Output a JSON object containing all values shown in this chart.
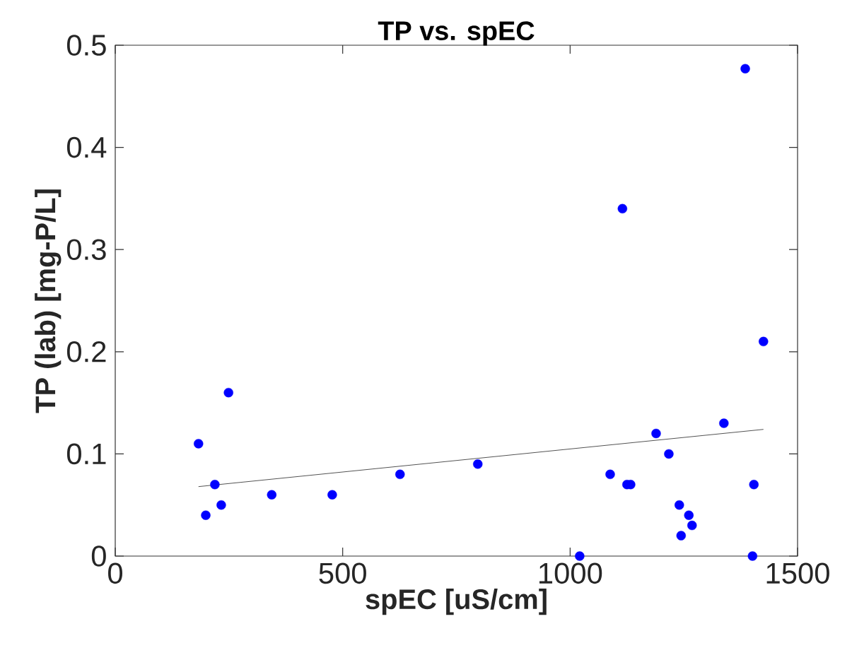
{
  "chart_data": {
    "type": "scatter",
    "title": "TP vs. spEC",
    "xlabel": "spEC [uS/cm]",
    "ylabel": "TP (lab) [mg-P/L]",
    "xlim": [
      0,
      1500
    ],
    "xticks": [
      0,
      500,
      1000,
      1500
    ],
    "ylim": [
      0,
      0.5
    ],
    "yticks": [
      0,
      0.1,
      0.2,
      0.3,
      0.4,
      0.5
    ],
    "grid": false,
    "marker": "circle",
    "series": [
      {
        "color": "#0000ff",
        "x": [
          183,
          199,
          219,
          233,
          249,
          344,
          477,
          626,
          797,
          1021,
          1088,
          1115,
          1125,
          1133,
          1189,
          1217,
          1240,
          1244,
          1261,
          1268,
          1338,
          1385,
          1401,
          1404,
          1425
        ],
        "values": [
          0.11,
          0.04,
          0.07,
          0.05,
          0.16,
          0.06,
          0.06,
          0.08,
          0.09,
          0,
          0.08,
          0.34,
          0.07,
          0.07,
          0.12,
          0.1,
          0.05,
          0.02,
          0.04,
          0.03,
          0.13,
          0.477,
          0,
          0.07,
          0.21
        ]
      },
      {
        "type": "line",
        "marker": "none",
        "color": "#404040",
        "x": [
          183,
          1425
        ],
        "values": [
          0.068,
          0.124
        ]
      }
    ]
  }
}
